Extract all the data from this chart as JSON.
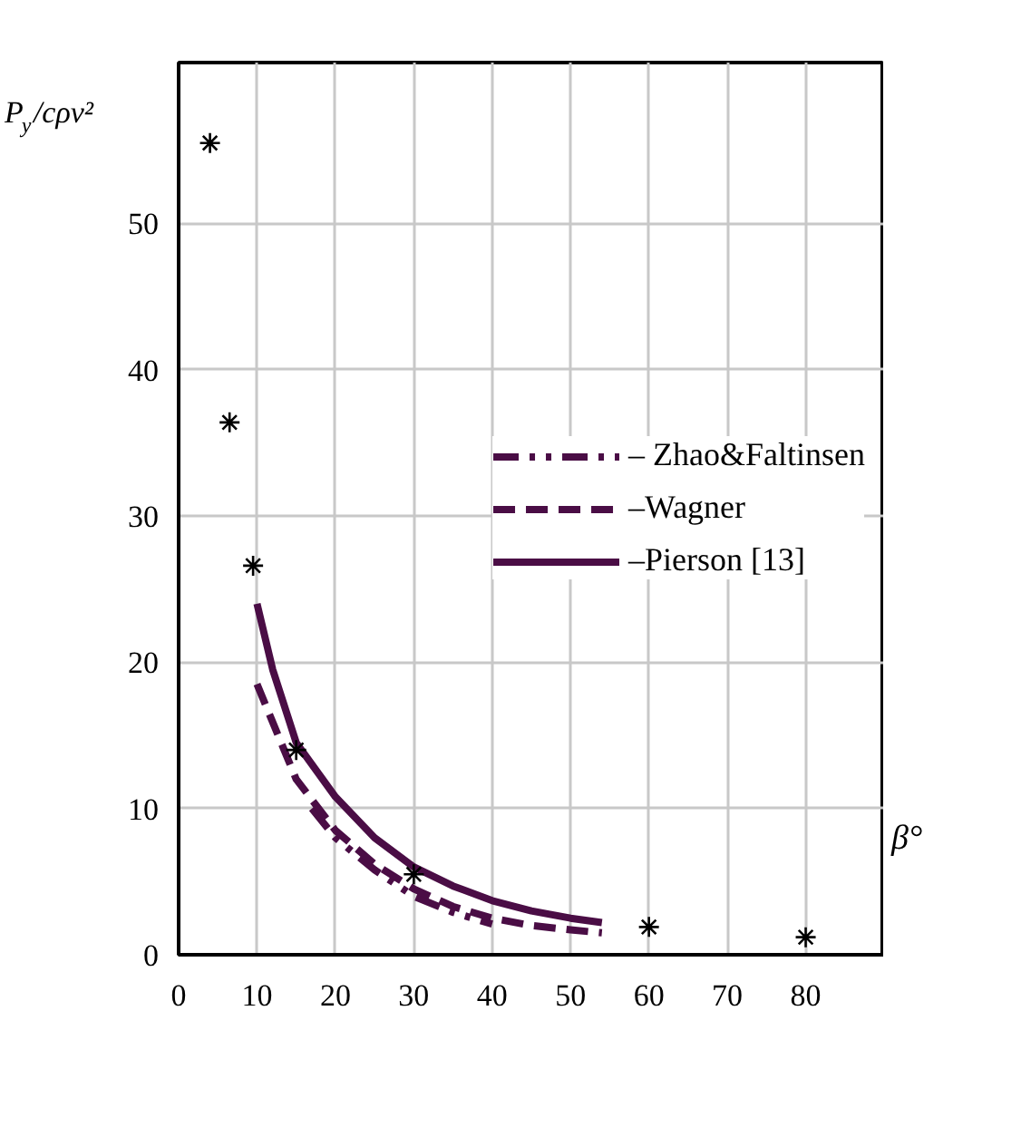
{
  "chart_data": {
    "type": "line",
    "xlabel": "β°",
    "ylabel": "P$_{y}$/cρv²",
    "xlim": [
      0,
      90
    ],
    "ylim": [
      0,
      61
    ],
    "xticks": [
      0,
      10,
      20,
      30,
      40,
      50,
      60,
      70,
      80
    ],
    "yticks": [
      0,
      10,
      20,
      30,
      40,
      50
    ],
    "grid": true,
    "legend": "right",
    "series": [
      {
        "name": "– Zhao&Faltinsen",
        "color": "#4a0d45",
        "line_style": "dashdot",
        "x": [
          17,
          20,
          25,
          30,
          35,
          40
        ],
        "values": [
          10,
          8,
          5.8,
          4,
          2.9,
          2.1
        ]
      },
      {
        "name": "–Wagner",
        "color": "#4a0d45",
        "line_style": "dashed",
        "x": [
          10,
          15,
          20,
          25,
          30,
          35,
          40,
          45,
          50,
          54
        ],
        "values": [
          18.5,
          12,
          8.5,
          6.2,
          4.5,
          3.3,
          2.5,
          2,
          1.7,
          1.5
        ]
      },
      {
        "name": "–Pierson [13]",
        "color": "#4a0d45",
        "line_style": "solid",
        "x": [
          10,
          12,
          15,
          20,
          25,
          30,
          35,
          40,
          45,
          50,
          54
        ],
        "values": [
          24,
          19.5,
          14.5,
          10.8,
          8,
          6,
          4.7,
          3.7,
          3,
          2.5,
          2.2
        ]
      },
      {
        "type": "scatter",
        "marker": "cross",
        "color": "#000000",
        "x": [
          4,
          6.5,
          9.5,
          15,
          30,
          60,
          80
        ],
        "values": [
          55.5,
          36.4,
          26.6,
          14,
          5.5,
          1.9,
          1.2
        ]
      }
    ]
  }
}
